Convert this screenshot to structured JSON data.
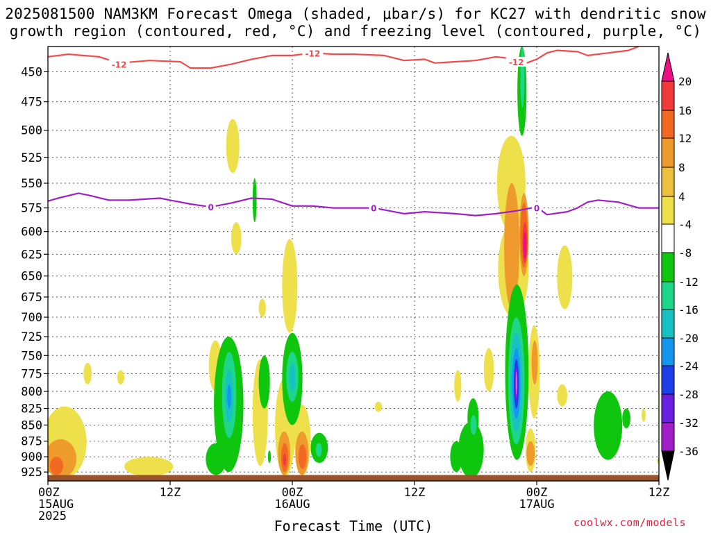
{
  "title_line1": "2025081500 NAM3KM Forecast Omega (shaded, μbar/s) for KC27 with dendritic snow",
  "title_line2": "growth region (contoured, red, °C) and freezing level (contoured, purple, °C)",
  "credit": "coolwx.com/models",
  "chart_data": {
    "type": "heatmap",
    "xlabel": "Forecast Time (UTC)",
    "x_unit": "forecast hour",
    "xlim": [
      0,
      60
    ],
    "x_ticks": [
      {
        "hour": 0,
        "lines": [
          "00Z",
          "15AUG",
          "2025"
        ]
      },
      {
        "hour": 12,
        "lines": [
          "12Z"
        ]
      },
      {
        "hour": 24,
        "lines": [
          "00Z",
          "16AUG"
        ]
      },
      {
        "hour": 36,
        "lines": [
          "12Z"
        ]
      },
      {
        "hour": 48,
        "lines": [
          "00Z",
          "17AUG"
        ]
      },
      {
        "hour": 60,
        "lines": [
          "12Z"
        ]
      }
    ],
    "ylabel": "",
    "y_unit": "hPa",
    "ylim": [
      430,
      940
    ],
    "y_ticks": [
      450,
      475,
      500,
      525,
      550,
      575,
      600,
      625,
      650,
      675,
      700,
      725,
      750,
      775,
      800,
      825,
      850,
      875,
      900,
      925
    ],
    "grid": true,
    "colorbar": {
      "labels": [
        "20",
        "16",
        "12",
        "8",
        "4",
        "-4",
        "-8",
        "-12",
        "-16",
        "-20",
        "-24",
        "-28",
        "-32",
        "-36"
      ],
      "colors": [
        "#ee0f84",
        "#f13a3a",
        "#f26a22",
        "#ee9a2c",
        "#eec040",
        "#eee04a",
        "#ffffff",
        "#0ec60e",
        "#1ed68a",
        "#18c2c2",
        "#1496ee",
        "#1e3ee8",
        "#6a1ee0",
        "#a01ec8",
        "#a8a8a8",
        "#000000"
      ]
    },
    "contours": [
      {
        "name": "dendritic snow growth region",
        "label": "-12",
        "color": "#f04a4a",
        "unit": "°C",
        "points": [
          [
            0,
            438
          ],
          [
            2,
            436
          ],
          [
            5,
            438
          ],
          [
            7,
            443
          ],
          [
            10,
            441
          ],
          [
            13,
            442
          ],
          [
            14,
            447
          ],
          [
            16,
            447
          ],
          [
            18,
            444
          ],
          [
            20,
            440
          ],
          [
            22,
            437
          ],
          [
            24,
            437
          ],
          [
            26,
            435
          ],
          [
            28,
            436
          ],
          [
            30,
            436
          ],
          [
            33,
            437
          ],
          [
            35,
            441
          ],
          [
            37,
            440
          ],
          [
            38,
            443
          ],
          [
            40,
            442
          ],
          [
            42,
            441
          ],
          [
            44,
            438
          ],
          [
            46,
            440
          ],
          [
            47,
            443
          ],
          [
            48,
            440
          ],
          [
            49,
            435
          ],
          [
            50,
            433
          ],
          [
            52,
            434
          ],
          [
            53,
            437
          ],
          [
            55,
            435
          ],
          [
            57,
            433
          ],
          [
            58,
            430
          ]
        ],
        "label_positions": [
          [
            7,
            444
          ],
          [
            26,
            435
          ],
          [
            46,
            442
          ]
        ]
      },
      {
        "name": "freezing level",
        "label": "0",
        "color": "#a01ec8",
        "unit": "°C",
        "points": [
          [
            0,
            568
          ],
          [
            1,
            565
          ],
          [
            3,
            560
          ],
          [
            4,
            562
          ],
          [
            6,
            567
          ],
          [
            8,
            567
          ],
          [
            11,
            565
          ],
          [
            12,
            567
          ],
          [
            14,
            571
          ],
          [
            16,
            574
          ],
          [
            18,
            570
          ],
          [
            20,
            565
          ],
          [
            22,
            566
          ],
          [
            24,
            573
          ],
          [
            26,
            573
          ],
          [
            28,
            575
          ],
          [
            30,
            575
          ],
          [
            32,
            575
          ],
          [
            35,
            581
          ],
          [
            37,
            579
          ],
          [
            40,
            581
          ],
          [
            42,
            583
          ],
          [
            44,
            581
          ],
          [
            46,
            578
          ],
          [
            48,
            574
          ],
          [
            49,
            582
          ],
          [
            51,
            579
          ],
          [
            52,
            575
          ],
          [
            53,
            569
          ],
          [
            54,
            567
          ],
          [
            56,
            569
          ],
          [
            58,
            575
          ],
          [
            60,
            575
          ]
        ],
        "label_positions": [
          [
            16,
            574
          ],
          [
            32,
            575
          ],
          [
            48,
            575
          ]
        ]
      }
    ],
    "shaded_regions": [
      {
        "value": 4,
        "hours": [
          -0.5,
          3.8
        ],
        "p": [
          822,
          935
        ]
      },
      {
        "value": 8,
        "hours": [
          -0.3,
          2.8
        ],
        "p": [
          872,
          935
        ]
      },
      {
        "value": 12,
        "hours": [
          0.2,
          1.5
        ],
        "p": [
          900,
          930
        ]
      },
      {
        "value": 4,
        "hours": [
          7.5,
          12.3
        ],
        "p": [
          900,
          932
        ]
      },
      {
        "value": 4,
        "hours": [
          3.5,
          4.3
        ],
        "p": [
          760,
          790
        ]
      },
      {
        "value": 4,
        "hours": [
          6.8,
          7.5
        ],
        "p": [
          770,
          790
        ]
      },
      {
        "value": 4,
        "hours": [
          17.5,
          18.8
        ],
        "p": [
          490,
          540
        ]
      },
      {
        "value": 4,
        "hours": [
          18.0,
          19.0
        ],
        "p": [
          590,
          625
        ]
      },
      {
        "value": 4,
        "hours": [
          20.1,
          21.6
        ],
        "p": [
          755,
          915
        ]
      },
      {
        "value": 4,
        "hours": [
          20.7,
          21.4
        ],
        "p": [
          677,
          700
        ]
      },
      {
        "value": 4,
        "hours": [
          23.0,
          24.5
        ],
        "p": [
          608,
          720
        ]
      },
      {
        "value": 4,
        "hours": [
          22.3,
          24.3
        ],
        "p": [
          780,
          932
        ]
      },
      {
        "value": 4,
        "hours": [
          15.8,
          17.1
        ],
        "p": [
          730,
          800
        ]
      },
      {
        "value": 4,
        "hours": [
          24.2,
          25.8
        ],
        "p": [
          820,
          930
        ]
      },
      {
        "value": 8,
        "hours": [
          22.6,
          23.8
        ],
        "p": [
          860,
          930
        ]
      },
      {
        "value": 12,
        "hours": [
          22.9,
          23.6
        ],
        "p": [
          878,
          925
        ]
      },
      {
        "value": 16,
        "hours": [
          23.1,
          23.4
        ],
        "p": [
          895,
          915
        ]
      },
      {
        "value": 8,
        "hours": [
          24.3,
          25.6
        ],
        "p": [
          860,
          930
        ]
      },
      {
        "value": 12,
        "hours": [
          24.6,
          25.4
        ],
        "p": [
          880,
          920
        ]
      },
      {
        "value": 4,
        "hours": [
          44.1,
          46.9
        ],
        "p": [
          505,
          600
        ]
      },
      {
        "value": 4,
        "hours": [
          44.2,
          47.2
        ],
        "p": [
          590,
          700
        ]
      },
      {
        "value": 8,
        "hours": [
          44.8,
          46.3
        ],
        "p": [
          550,
          690
        ]
      },
      {
        "value": 8,
        "hours": [
          46.3,
          47.2
        ],
        "p": [
          560,
          650
        ]
      },
      {
        "value": 12,
        "hours": [
          46.4,
          47.1
        ],
        "p": [
          570,
          640
        ]
      },
      {
        "value": 16,
        "hours": [
          46.6,
          47.1
        ],
        "p": [
          590,
          635
        ]
      },
      {
        "value": 20,
        "hours": [
          46.7,
          47.0
        ],
        "p": [
          600,
          630
        ]
      },
      {
        "value": 4,
        "hours": [
          47.2,
          48.3
        ],
        "p": [
          710,
          840
        ]
      },
      {
        "value": 8,
        "hours": [
          47.5,
          48.1
        ],
        "p": [
          730,
          790
        ]
      },
      {
        "value": 4,
        "hours": [
          50.0,
          51.5
        ],
        "p": [
          615,
          690
        ]
      },
      {
        "value": 4,
        "hours": [
          50.0,
          51.0
        ],
        "p": [
          790,
          822
        ]
      },
      {
        "value": 4,
        "hours": [
          42.8,
          43.8
        ],
        "p": [
          740,
          800
        ]
      },
      {
        "value": 4,
        "hours": [
          39.9,
          40.6
        ],
        "p": [
          770,
          815
        ]
      },
      {
        "value": 4,
        "hours": [
          46.9,
          47.9
        ],
        "p": [
          855,
          925
        ]
      },
      {
        "value": 8,
        "hours": [
          47.0,
          47.8
        ],
        "p": [
          875,
          915
        ]
      },
      {
        "value": 4,
        "hours": [
          58.3,
          58.7
        ],
        "p": [
          825,
          845
        ]
      },
      {
        "value": 4,
        "hours": [
          59.8,
          60.3
        ],
        "p": [
          902,
          912
        ]
      },
      {
        "value": 4,
        "hours": [
          32.1,
          32.8
        ],
        "p": [
          815,
          830
        ]
      },
      {
        "value": -4,
        "hours": [
          16.3,
          19.2
        ],
        "p": [
          725,
          925
        ]
      },
      {
        "value": -4,
        "hours": [
          15.5,
          17.5
        ],
        "p": [
          878,
          930
        ]
      },
      {
        "value": -8,
        "hours": [
          17.1,
          18.5
        ],
        "p": [
          745,
          870
        ]
      },
      {
        "value": -12,
        "hours": [
          17.4,
          18.2
        ],
        "p": [
          770,
          845
        ]
      },
      {
        "value": -16,
        "hours": [
          17.6,
          18.0
        ],
        "p": [
          790,
          825
        ]
      },
      {
        "value": -4,
        "hours": [
          20.7,
          21.8
        ],
        "p": [
          750,
          825
        ]
      },
      {
        "value": -4,
        "hours": [
          23.0,
          25.0
        ],
        "p": [
          720,
          850
        ]
      },
      {
        "value": -8,
        "hours": [
          23.4,
          24.6
        ],
        "p": [
          745,
          815
        ]
      },
      {
        "value": -12,
        "hours": [
          23.7,
          24.3
        ],
        "p": [
          760,
          800
        ]
      },
      {
        "value": -4,
        "hours": [
          25.8,
          27.5
        ],
        "p": [
          862,
          910
        ]
      },
      {
        "value": -8,
        "hours": [
          26.3,
          26.9
        ],
        "p": [
          878,
          900
        ]
      },
      {
        "value": -4,
        "hours": [
          20.1,
          20.5
        ],
        "p": [
          545,
          590
        ]
      },
      {
        "value": -4,
        "hours": [
          21.6,
          21.9
        ],
        "p": [
          890,
          910
        ]
      },
      {
        "value": -4,
        "hours": [
          39.5,
          40.7
        ],
        "p": [
          875,
          925
        ]
      },
      {
        "value": -4,
        "hours": [
          40.3,
          42.8
        ],
        "p": [
          845,
          935
        ]
      },
      {
        "value": -4,
        "hours": [
          41.2,
          42.3
        ],
        "p": [
          810,
          870
        ]
      },
      {
        "value": -8,
        "hours": [
          41.5,
          42.1
        ],
        "p": [
          835,
          865
        ]
      },
      {
        "value": -4,
        "hours": [
          44.9,
          47.2
        ],
        "p": [
          660,
          905
        ]
      },
      {
        "value": -8,
        "hours": [
          45.2,
          46.8
        ],
        "p": [
          700,
          880
        ]
      },
      {
        "value": -12,
        "hours": [
          45.4,
          46.6
        ],
        "p": [
          720,
          860
        ]
      },
      {
        "value": -16,
        "hours": [
          45.6,
          46.4
        ],
        "p": [
          740,
          840
        ]
      },
      {
        "value": -20,
        "hours": [
          45.75,
          46.25
        ],
        "p": [
          755,
          825
        ]
      },
      {
        "value": -24,
        "hours": [
          45.85,
          46.15
        ],
        "p": [
          765,
          815
        ]
      },
      {
        "value": -28,
        "hours": [
          45.9,
          46.1
        ],
        "p": [
          768,
          810
        ]
      },
      {
        "value": -32,
        "hours": [
          45.95,
          46.05
        ],
        "p": [
          772,
          805
        ]
      },
      {
        "value": -4,
        "hours": [
          46.1,
          47.0
        ],
        "p": [
          430,
          505
        ]
      },
      {
        "value": -8,
        "hours": [
          46.4,
          46.8
        ],
        "p": [
          430,
          480
        ]
      },
      {
        "value": -4,
        "hours": [
          53.6,
          56.4
        ],
        "p": [
          800,
          905
        ]
      },
      {
        "value": -4,
        "hours": [
          56.4,
          57.2
        ],
        "p": [
          825,
          855
        ]
      }
    ],
    "surface_fill_color": "#9a522a"
  }
}
